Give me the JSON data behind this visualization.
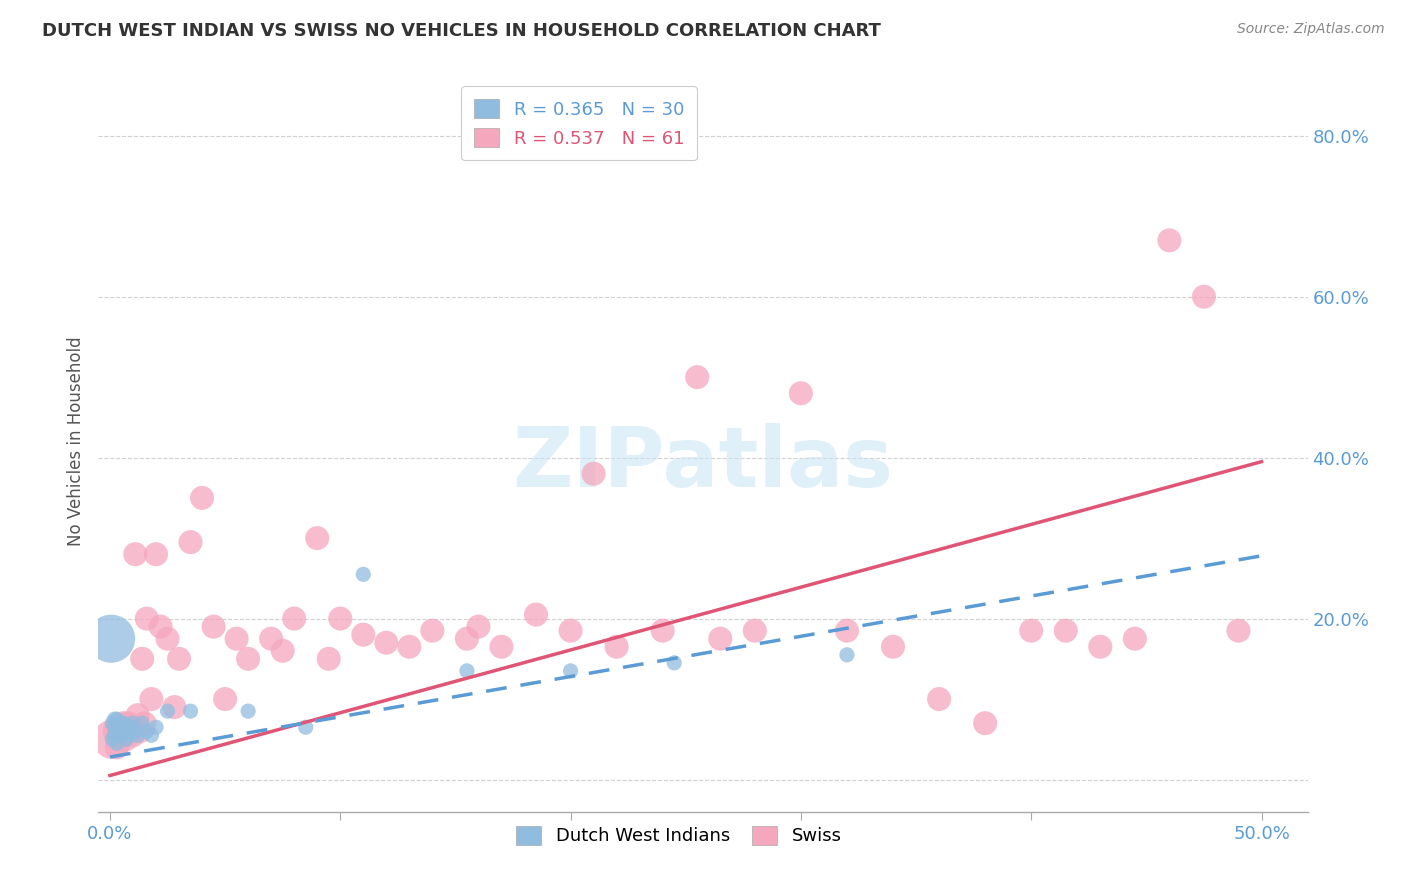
{
  "title": "DUTCH WEST INDIAN VS SWISS NO VEHICLES IN HOUSEHOLD CORRELATION CHART",
  "source": "Source: ZipAtlas.com",
  "ylabel": "No Vehicles in Household",
  "xlim": [
    -0.005,
    0.52
  ],
  "ylim": [
    -0.04,
    0.88
  ],
  "xticks": [
    0.0,
    0.1,
    0.2,
    0.3,
    0.4,
    0.5
  ],
  "xticklabels": [
    "0.0%",
    "",
    "",
    "",
    "",
    "50.0%"
  ],
  "yticks": [
    0.0,
    0.2,
    0.4,
    0.6,
    0.8
  ],
  "yticklabels": [
    "",
    "20.0%",
    "40.0%",
    "60.0%",
    "80.0%"
  ],
  "background_color": "#ffffff",
  "watermark_text": "ZIPatlas",
  "dwi_color": "#90bce0",
  "dwi_line_color": "#5b9bd5",
  "swiss_color": "#f5a7be",
  "swiss_line_color": "#e05575",
  "dwi_intercept": 0.028,
  "dwi_slope": 0.5,
  "swiss_intercept": 0.005,
  "swiss_slope": 0.78,
  "dwi_x": [
    0.0005,
    0.001,
    0.001,
    0.002,
    0.002,
    0.002,
    0.003,
    0.003,
    0.003,
    0.004,
    0.004,
    0.005,
    0.005,
    0.006,
    0.006,
    0.007,
    0.007,
    0.008,
    0.008,
    0.009,
    0.01,
    0.011,
    0.012,
    0.014,
    0.016,
    0.018,
    0.02,
    0.025,
    0.035,
    0.06,
    0.085,
    0.11,
    0.155,
    0.2,
    0.245,
    0.32
  ],
  "dwi_y": [
    0.175,
    0.05,
    0.07,
    0.055,
    0.065,
    0.075,
    0.06,
    0.045,
    0.075,
    0.065,
    0.055,
    0.07,
    0.06,
    0.055,
    0.07,
    0.06,
    0.05,
    0.065,
    0.055,
    0.065,
    0.07,
    0.06,
    0.055,
    0.07,
    0.06,
    0.055,
    0.065,
    0.085,
    0.085,
    0.085,
    0.065,
    0.255,
    0.135,
    0.135,
    0.145,
    0.155
  ],
  "dwi_sizes": [
    1200,
    120,
    120,
    120,
    120,
    120,
    120,
    120,
    120,
    120,
    120,
    120,
    120,
    120,
    120,
    120,
    120,
    120,
    120,
    120,
    120,
    120,
    120,
    120,
    120,
    120,
    120,
    120,
    120,
    120,
    120,
    120,
    120,
    120,
    120,
    120
  ],
  "swiss_x": [
    0.001,
    0.002,
    0.003,
    0.004,
    0.005,
    0.006,
    0.007,
    0.008,
    0.009,
    0.01,
    0.011,
    0.012,
    0.013,
    0.014,
    0.015,
    0.016,
    0.018,
    0.02,
    0.022,
    0.025,
    0.028,
    0.03,
    0.035,
    0.04,
    0.045,
    0.05,
    0.055,
    0.06,
    0.07,
    0.075,
    0.08,
    0.09,
    0.095,
    0.1,
    0.11,
    0.12,
    0.13,
    0.14,
    0.155,
    0.16,
    0.17,
    0.185,
    0.2,
    0.21,
    0.22,
    0.24,
    0.255,
    0.265,
    0.28,
    0.3,
    0.32,
    0.34,
    0.36,
    0.38,
    0.4,
    0.415,
    0.43,
    0.445,
    0.46,
    0.475,
    0.49
  ],
  "swiss_y": [
    0.05,
    0.06,
    0.04,
    0.06,
    0.055,
    0.07,
    0.05,
    0.07,
    0.06,
    0.055,
    0.28,
    0.08,
    0.06,
    0.15,
    0.07,
    0.2,
    0.1,
    0.28,
    0.19,
    0.175,
    0.09,
    0.15,
    0.295,
    0.35,
    0.19,
    0.1,
    0.175,
    0.15,
    0.175,
    0.16,
    0.2,
    0.3,
    0.15,
    0.2,
    0.18,
    0.17,
    0.165,
    0.185,
    0.175,
    0.19,
    0.165,
    0.205,
    0.185,
    0.38,
    0.165,
    0.185,
    0.5,
    0.175,
    0.185,
    0.48,
    0.185,
    0.165,
    0.1,
    0.07,
    0.185,
    0.185,
    0.165,
    0.175,
    0.67,
    0.6,
    0.185
  ],
  "swiss_sizes": [
    800,
    300,
    300,
    300,
    300,
    300,
    300,
    300,
    300,
    300,
    300,
    300,
    300,
    300,
    300,
    300,
    300,
    300,
    300,
    300,
    300,
    300,
    300,
    300,
    300,
    300,
    300,
    300,
    300,
    300,
    300,
    300,
    300,
    300,
    300,
    300,
    300,
    300,
    300,
    300,
    300,
    300,
    300,
    300,
    300,
    300,
    300,
    300,
    300,
    300,
    300,
    300,
    300,
    300,
    300,
    300,
    300,
    300,
    300,
    300,
    300
  ]
}
